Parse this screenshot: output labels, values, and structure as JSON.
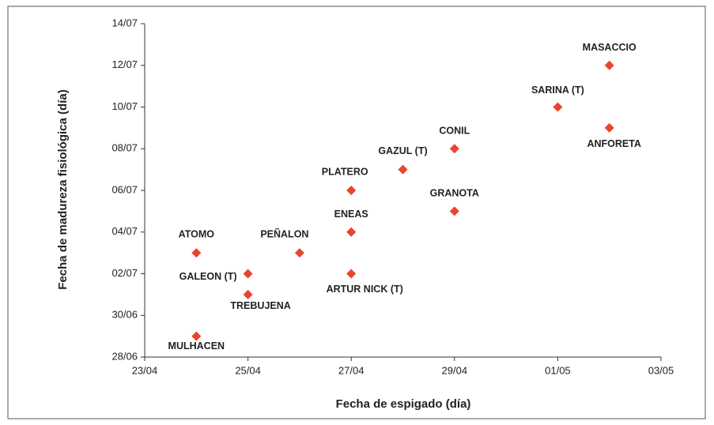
{
  "chart_data": {
    "type": "scatter",
    "xlabel": "Fecha de espigado (día)",
    "ylabel": "Fecha de madureza fisiológica (día)",
    "color": "#e8452c",
    "labels": [
      "ATOMO",
      "GALEON (T)",
      "TREBUJENA",
      "MULHACEN",
      "PEÑALON",
      "ARTUR NICK (T)",
      "ENEAS",
      "PLATERO",
      "GAZUL (T)",
      "CONIL",
      "GRANOTA",
      "SARINA (T)",
      "MASACCIO",
      "ANFORETA"
    ],
    "x": [
      "24/04",
      "25/04",
      "25/04",
      "24/04",
      "26/04",
      "27/04",
      "27/04",
      "27/04",
      "28/04",
      "29/04",
      "29/04",
      "01/05",
      "02/05",
      "02/05"
    ],
    "y": [
      "03/07",
      "02/07",
      "01/07",
      "29/06",
      "03/07",
      "02/07",
      "04/07",
      "06/07",
      "07/07",
      "08/07",
      "05/07",
      "10/07",
      "12/07",
      "09/07"
    ],
    "xlim": [
      "23/04",
      "03/05"
    ],
    "xticks": [
      "23/04",
      "25/04",
      "27/04",
      "29/04",
      "01/05",
      "03/05"
    ],
    "ylim": [
      "28/06",
      "14/07"
    ],
    "yticks": [
      "28/06",
      "30/06",
      "02/07",
      "04/07",
      "06/07",
      "08/07",
      "10/07",
      "12/07",
      "14/07"
    ]
  }
}
